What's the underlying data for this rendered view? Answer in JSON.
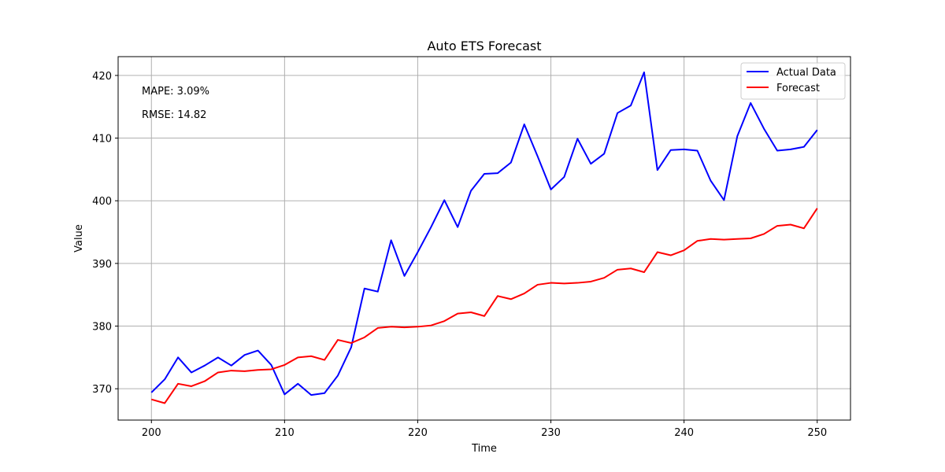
{
  "chart_data": {
    "type": "line",
    "title": "Auto ETS Forecast",
    "xlabel": "Time",
    "ylabel": "Value",
    "xlim": [
      197.5,
      252.5
    ],
    "ylim": [
      365,
      423
    ],
    "xticks": [
      200,
      210,
      220,
      230,
      240,
      250
    ],
    "yticks": [
      370,
      380,
      390,
      400,
      410,
      420
    ],
    "grid": true,
    "legend_position": "top-right",
    "annotations": [
      "MAPE: 3.09%",
      "RMSE: 14.82"
    ],
    "x": [
      200,
      201,
      202,
      203,
      204,
      205,
      206,
      207,
      208,
      209,
      210,
      211,
      212,
      213,
      214,
      215,
      216,
      217,
      218,
      219,
      220,
      221,
      222,
      223,
      224,
      225,
      226,
      227,
      228,
      229,
      230,
      231,
      232,
      233,
      234,
      235,
      236,
      237,
      238,
      239,
      240,
      241,
      242,
      243,
      244,
      245,
      246,
      247,
      248,
      249,
      250
    ],
    "series": [
      {
        "name": "Actual Data",
        "color": "#0000ff",
        "values": [
          369.4,
          371.5,
          375.0,
          372.6,
          373.7,
          375.0,
          373.7,
          375.4,
          376.1,
          373.8,
          369.1,
          370.8,
          369.0,
          369.3,
          372.1,
          376.6,
          386.0,
          385.5,
          393.7,
          388.0,
          391.8,
          395.8,
          400.1,
          395.8,
          401.6,
          404.3,
          404.4,
          406.1,
          412.2,
          407.1,
          401.8,
          403.8,
          409.9,
          405.9,
          407.5,
          414.0,
          415.2,
          420.5,
          404.9,
          408.1,
          408.2,
          408.0,
          403.2,
          400.1,
          410.3,
          415.6,
          411.5,
          408.0,
          408.2,
          408.6,
          411.3
        ]
      },
      {
        "name": "Forecast",
        "color": "#ff0000",
        "values": [
          368.3,
          367.7,
          370.8,
          370.4,
          371.2,
          372.6,
          372.9,
          372.8,
          373.0,
          373.1,
          373.8,
          375.0,
          375.2,
          374.6,
          377.8,
          377.3,
          378.2,
          379.7,
          379.9,
          379.8,
          379.9,
          380.1,
          380.8,
          382.0,
          382.2,
          381.6,
          384.8,
          384.3,
          385.2,
          386.6,
          386.9,
          386.8,
          386.9,
          387.1,
          387.7,
          389.0,
          389.2,
          388.6,
          391.8,
          391.3,
          392.1,
          393.6,
          393.9,
          393.8,
          393.9,
          394.0,
          394.7,
          396.0,
          396.2,
          395.6,
          398.8
        ]
      }
    ]
  }
}
